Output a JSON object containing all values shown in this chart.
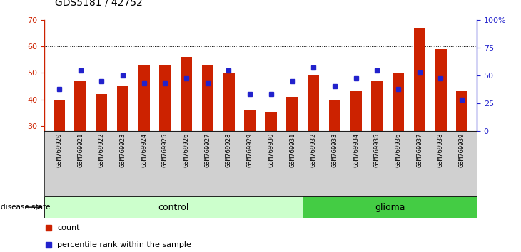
{
  "title": "GDS5181 / 42752",
  "samples": [
    "GSM769920",
    "GSM769921",
    "GSM769922",
    "GSM769923",
    "GSM769924",
    "GSM769925",
    "GSM769926",
    "GSM769927",
    "GSM769928",
    "GSM769929",
    "GSM769930",
    "GSM769931",
    "GSM769932",
    "GSM769933",
    "GSM769934",
    "GSM769935",
    "GSM769936",
    "GSM769937",
    "GSM769938",
    "GSM769939"
  ],
  "bar_values": [
    40,
    47,
    42,
    45,
    53,
    53,
    56,
    53,
    50,
    36,
    35,
    41,
    49,
    40,
    43,
    47,
    50,
    67,
    59,
    43
  ],
  "dot_values": [
    44,
    51,
    47,
    49,
    46,
    46,
    48,
    46,
    51,
    42,
    42,
    47,
    52,
    45,
    48,
    51,
    44,
    50,
    48,
    40
  ],
  "control_count": 12,
  "glioma_count": 8,
  "ylim_left": [
    28,
    70
  ],
  "yticks_left": [
    30,
    40,
    50,
    60,
    70
  ],
  "grid_lines": [
    40,
    50,
    60
  ],
  "ylim_right": [
    0,
    100
  ],
  "yticks_right": [
    0,
    25,
    50,
    75,
    100
  ],
  "ytick_right_labels": [
    "0",
    "25",
    "50",
    "75",
    "100%"
  ],
  "bar_color": "#cc2200",
  "dot_color": "#2222cc",
  "xticklabel_bg": "#d0d0d0",
  "control_color": "#ccffcc",
  "glioma_color": "#44cc44",
  "bar_width": 0.55,
  "legend_items": [
    "count",
    "percentile rank within the sample"
  ],
  "title_fontsize": 10,
  "axis_fontsize": 8,
  "label_fontsize": 6.5
}
